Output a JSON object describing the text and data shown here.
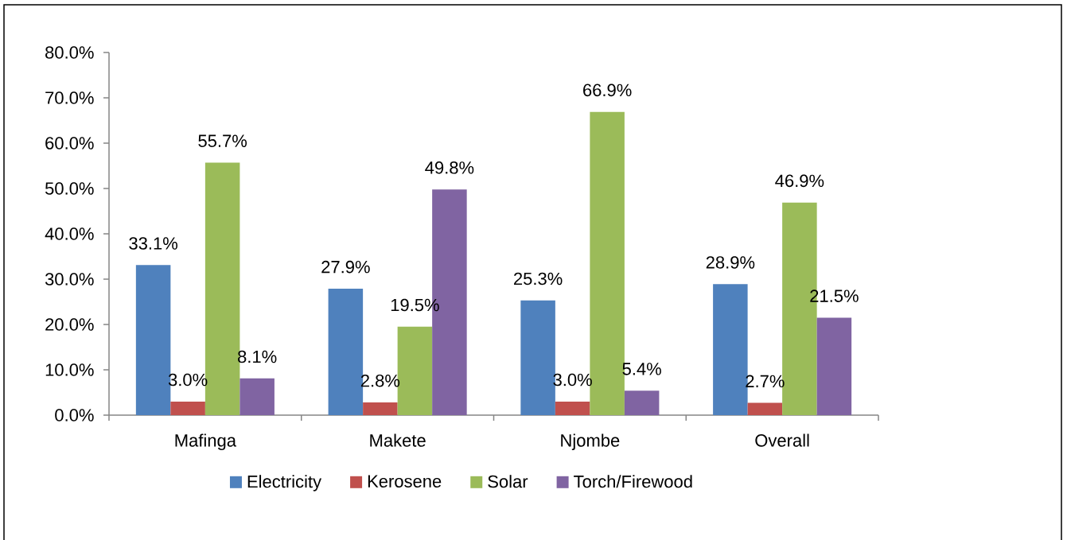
{
  "chart_data": {
    "type": "bar",
    "categories": [
      "Mafinga",
      "Makete",
      "Njombe",
      "Overall"
    ],
    "series": [
      {
        "name": "Electricity",
        "color": "#4f81bd",
        "values": [
          33.1,
          27.9,
          25.3,
          28.9
        ],
        "value_labels": [
          "33.1%",
          "27.9%",
          "25.3%",
          "28.9%"
        ]
      },
      {
        "name": "Kerosene",
        "color": "#c0504d",
        "values": [
          3.0,
          2.8,
          3.0,
          2.7
        ],
        "value_labels": [
          "3.0%",
          "2.8%",
          "3.0%",
          "2.7%"
        ]
      },
      {
        "name": "Solar",
        "color": "#9bbb59",
        "values": [
          55.7,
          19.5,
          66.9,
          46.9
        ],
        "value_labels": [
          "55.7%",
          "19.5%",
          "66.9%",
          "46.9%"
        ]
      },
      {
        "name": "Torch/Firewood",
        "color": "#8064a2",
        "values": [
          8.1,
          49.8,
          5.4,
          21.5
        ],
        "value_labels": [
          "8.1%",
          "49.8%",
          "5.4%",
          "21.5%"
        ]
      }
    ],
    "ylim": [
      0,
      80
    ],
    "yticks": [
      {
        "value": 0,
        "label": "0.0%"
      },
      {
        "value": 10,
        "label": "10.0%"
      },
      {
        "value": 20,
        "label": "20.0%"
      },
      {
        "value": 30,
        "label": "30.0%"
      },
      {
        "value": 40,
        "label": "40.0%"
      },
      {
        "value": 50,
        "label": "50.0%"
      },
      {
        "value": 60,
        "label": "60.0%"
      },
      {
        "value": 70,
        "label": "70.0%"
      },
      {
        "value": 80,
        "label": "80.0%"
      }
    ],
    "legend": "bottom"
  }
}
